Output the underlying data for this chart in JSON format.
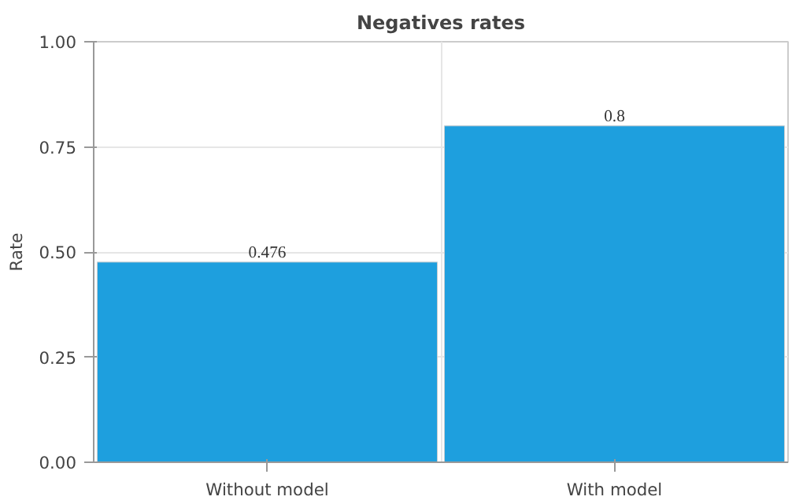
{
  "chart_data": {
    "type": "bar",
    "title": "Negatives rates",
    "ylabel": "Rate",
    "categories": [
      "Without model",
      "With model"
    ],
    "values": [
      0.476,
      0.8
    ],
    "color": "#1e9fde",
    "ylim": [
      0,
      1
    ],
    "yticks": [
      {
        "value": 0,
        "label": "0.00"
      },
      {
        "value": 0.25,
        "label": "0.25"
      },
      {
        "value": 0.5,
        "label": "0.50"
      },
      {
        "value": 0.75,
        "label": "0.75"
      },
      {
        "value": 1,
        "label": "1.00"
      }
    ],
    "grid": true,
    "data_labels": true
  }
}
